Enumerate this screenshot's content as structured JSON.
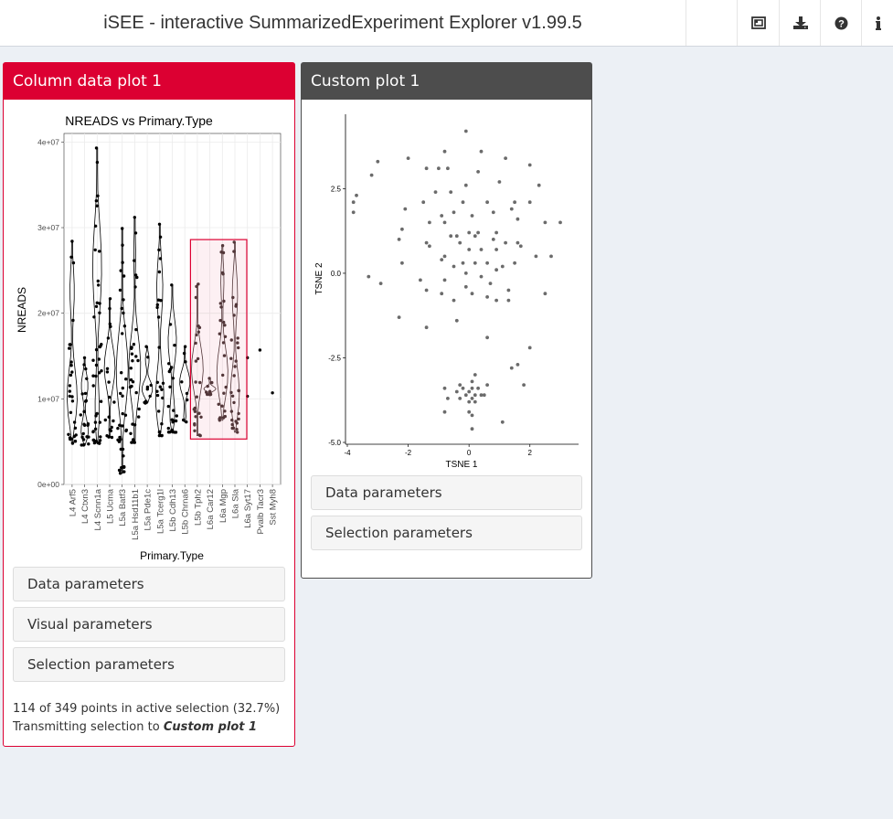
{
  "header": {
    "title": "iSEE - interactive SummarizedExperiment Explorer v1.99.5",
    "buttons": [
      {
        "icon": "panel-organization-icon"
      },
      {
        "icon": "download-icon"
      },
      {
        "icon": "question-circle-icon"
      },
      {
        "icon": "info-icon"
      }
    ]
  },
  "colors": {
    "column_panel": "#dc0032",
    "custom_panel": "#4d4d4d",
    "background": "#ecf0f5",
    "selection_brush": "#dc0032"
  },
  "panel1": {
    "title": "Column data plot 1",
    "params": [
      "Data parameters",
      "Visual parameters",
      "Selection parameters"
    ],
    "status_line1": "114 of 349 points in active selection (32.7%)",
    "status_prefix": "Transmitting selection to ",
    "status_target": "Custom plot 1"
  },
  "panel2": {
    "title": "Custom plot 1",
    "params": [
      "Data parameters",
      "Selection parameters"
    ]
  },
  "chart_data": [
    {
      "type": "violin",
      "title": "NREADS vs Primary.Type",
      "xlabel": "Primary.Type",
      "ylabel": "NREADS",
      "ylim": [
        0,
        41000000
      ],
      "y_ticks": [
        0,
        10000000,
        20000000,
        30000000,
        40000000
      ],
      "y_tick_labels": [
        "0e+00",
        "1e+07",
        "2e+07",
        "3e+07",
        "4e+07"
      ],
      "categories": [
        "L4 Arf5",
        "L4 Ctxn3",
        "L4 Scnn1a",
        "L5 Ucma",
        "L5a Batf3",
        "L5a Hsd11b1",
        "L5a Pde1c",
        "L5a Tcerg1l",
        "L5b Cdh13",
        "L5b Chrna6",
        "L5b Tph2",
        "L6a Car12",
        "L6a Mgp",
        "L6a Sla",
        "L6a Syt17",
        "Pvalb Tacr3",
        "Sst Myh8"
      ],
      "min_values": [
        4800000,
        4600000,
        4800000,
        5500000,
        1300000,
        4900000,
        9500000,
        5700000,
        6100000,
        7300000,
        5700000,
        10500000,
        7500000,
        6100000,
        10300000,
        15700000,
        10700000
      ],
      "max_values": [
        28400000,
        14800000,
        39300000,
        21700000,
        29900000,
        31200000,
        16100000,
        30400000,
        23300000,
        16100000,
        23400000,
        12400000,
        27900000,
        28300000,
        14800000,
        15700000,
        10700000
      ],
      "point_counts": [
        28,
        24,
        44,
        20,
        38,
        30,
        14,
        26,
        24,
        8,
        24,
        10,
        26,
        30,
        2,
        1,
        1
      ],
      "selected_categories": [
        "L5b Tph2",
        "L6a Car12",
        "L6a Mgp",
        "L6a Sla"
      ],
      "selection_ylim": [
        5300000,
        28600000
      ]
    },
    {
      "type": "scatter",
      "xlabel": "TSNE 1",
      "ylabel": "TSNE 2",
      "xlim": [
        -4,
        3.6
      ],
      "ylim": [
        -5.0,
        4.7
      ],
      "x_ticks": [
        -4,
        -2,
        0,
        2
      ],
      "x_tick_labels": [
        "-4",
        "-2",
        "0",
        "2"
      ],
      "y_ticks": [
        -5.0,
        -2.5,
        0.0,
        2.5
      ],
      "y_tick_labels": [
        "-5.0",
        "-2.5",
        "0.0",
        "2.5"
      ],
      "points": [
        [
          -0.1,
          4.2
        ],
        [
          -0.8,
          3.6
        ],
        [
          0.4,
          3.6
        ],
        [
          1.2,
          3.4
        ],
        [
          2.0,
          3.2
        ],
        [
          -2.0,
          3.4
        ],
        [
          -3.0,
          3.3
        ],
        [
          -3.2,
          2.9
        ],
        [
          -1.4,
          3.1
        ],
        [
          -1.0,
          3.1
        ],
        [
          -0.7,
          3.1
        ],
        [
          0.3,
          3.0
        ],
        [
          1.0,
          2.7
        ],
        [
          2.3,
          2.6
        ],
        [
          -0.1,
          2.6
        ],
        [
          -0.6,
          2.4
        ],
        [
          -1.1,
          2.4
        ],
        [
          -3.7,
          2.3
        ],
        [
          -3.8,
          2.1
        ],
        [
          -1.5,
          2.1
        ],
        [
          -0.2,
          2.1
        ],
        [
          0.6,
          2.1
        ],
        [
          1.5,
          2.1
        ],
        [
          2.0,
          2.1
        ],
        [
          -3.8,
          1.8
        ],
        [
          -2.1,
          1.9
        ],
        [
          -0.5,
          1.8
        ],
        [
          -0.9,
          1.7
        ],
        [
          0.1,
          1.7
        ],
        [
          0.8,
          1.8
        ],
        [
          1.4,
          1.9
        ],
        [
          -1.3,
          1.5
        ],
        [
          -0.8,
          1.5
        ],
        [
          1.6,
          1.6
        ],
        [
          2.5,
          1.5
        ],
        [
          3.0,
          1.5
        ],
        [
          -2.2,
          1.3
        ],
        [
          0.0,
          1.2
        ],
        [
          0.3,
          1.2
        ],
        [
          0.9,
          1.2
        ],
        [
          -2.3,
          1.0
        ],
        [
          -1.4,
          0.9
        ],
        [
          -0.6,
          1.1
        ],
        [
          -0.4,
          1.1
        ],
        [
          0.2,
          1.1
        ],
        [
          0.8,
          1.0
        ],
        [
          1.2,
          0.9
        ],
        [
          1.6,
          0.9
        ],
        [
          -1.3,
          0.8
        ],
        [
          -0.3,
          0.9
        ],
        [
          0.0,
          0.7
        ],
        [
          0.4,
          0.7
        ],
        [
          0.9,
          0.7
        ],
        [
          1.7,
          0.8
        ],
        [
          2.2,
          0.5
        ],
        [
          2.7,
          0.5
        ],
        [
          -0.9,
          0.4
        ],
        [
          -0.8,
          0.5
        ],
        [
          -0.2,
          0.3
        ],
        [
          0.2,
          0.3
        ],
        [
          0.6,
          0.3
        ],
        [
          1.1,
          0.2
        ],
        [
          1.5,
          0.3
        ],
        [
          -2.2,
          0.3
        ],
        [
          -0.5,
          0.2
        ],
        [
          -0.1,
          0.0
        ],
        [
          0.4,
          -0.1
        ],
        [
          0.9,
          0.1
        ],
        [
          -0.8,
          -0.2
        ],
        [
          -1.6,
          -0.2
        ],
        [
          -2.9,
          -0.3
        ],
        [
          -3.3,
          -0.1
        ],
        [
          0.7,
          -0.3
        ],
        [
          -0.1,
          -0.4
        ],
        [
          1.3,
          -0.5
        ],
        [
          0.1,
          -0.6
        ],
        [
          -1.4,
          -0.5
        ],
        [
          -0.9,
          -0.6
        ],
        [
          -0.5,
          -0.8
        ],
        [
          0.6,
          -0.7
        ],
        [
          0.9,
          -0.8
        ],
        [
          1.3,
          -0.8
        ],
        [
          2.5,
          -0.6
        ],
        [
          -2.3,
          -1.3
        ],
        [
          -1.4,
          -1.6
        ],
        [
          -0.4,
          -1.4
        ],
        [
          0.6,
          -1.9
        ],
        [
          2.0,
          -2.2
        ],
        [
          1.6,
          -2.7
        ],
        [
          1.4,
          -2.8
        ],
        [
          0.2,
          -3.0
        ],
        [
          0.1,
          -3.2
        ],
        [
          -0.3,
          -3.3
        ],
        [
          0.6,
          -3.3
        ],
        [
          1.8,
          -3.3
        ],
        [
          -0.8,
          -3.4
        ],
        [
          -0.2,
          -3.4
        ],
        [
          0.1,
          -3.4
        ],
        [
          0.3,
          -3.4
        ],
        [
          -0.4,
          -3.5
        ],
        [
          0.0,
          -3.5
        ],
        [
          -0.1,
          -3.6
        ],
        [
          0.2,
          -3.6
        ],
        [
          0.4,
          -3.6
        ],
        [
          0.5,
          -3.6
        ],
        [
          -0.7,
          -3.7
        ],
        [
          0.1,
          -3.7
        ],
        [
          -0.3,
          -3.7
        ],
        [
          0.2,
          -3.8
        ],
        [
          0.0,
          -3.8
        ],
        [
          -0.8,
          -4.1
        ],
        [
          0.0,
          -4.1
        ],
        [
          0.1,
          -4.2
        ],
        [
          1.1,
          -4.4
        ],
        [
          0.1,
          -4.6
        ]
      ]
    }
  ]
}
